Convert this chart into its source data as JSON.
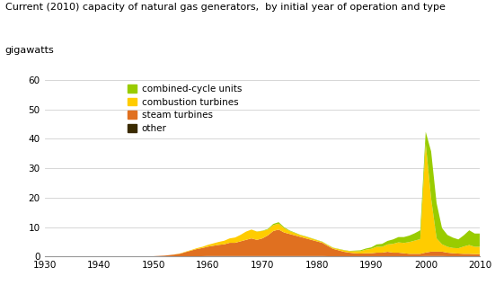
{
  "title": "Current (2010) capacity of natural gas generators,  by initial year of operation and type",
  "ylabel": "gigawatts",
  "xlim": [
    1930,
    2010
  ],
  "ylim": [
    0,
    60
  ],
  "yticks": [
    0,
    10,
    20,
    30,
    40,
    50,
    60
  ],
  "xticks": [
    1930,
    1940,
    1950,
    1960,
    1970,
    1980,
    1990,
    2000,
    2010
  ],
  "colors": {
    "combined_cycle": "#99cc00",
    "combustion": "#ffcc00",
    "steam": "#e07020",
    "other": "#3a2a00"
  },
  "legend_labels": [
    "combined-cycle units",
    "combustion turbines",
    "steam turbines",
    "other"
  ],
  "background_color": "#ffffff",
  "years": [
    1930,
    1931,
    1932,
    1933,
    1934,
    1935,
    1936,
    1937,
    1938,
    1939,
    1940,
    1941,
    1942,
    1943,
    1944,
    1945,
    1946,
    1947,
    1948,
    1949,
    1950,
    1951,
    1952,
    1953,
    1954,
    1955,
    1956,
    1957,
    1958,
    1959,
    1960,
    1961,
    1962,
    1963,
    1964,
    1965,
    1966,
    1967,
    1968,
    1969,
    1970,
    1971,
    1972,
    1973,
    1974,
    1975,
    1976,
    1977,
    1978,
    1979,
    1980,
    1981,
    1982,
    1983,
    1984,
    1985,
    1986,
    1987,
    1988,
    1989,
    1990,
    1991,
    1992,
    1993,
    1994,
    1995,
    1996,
    1997,
    1998,
    1999,
    2000,
    2001,
    2002,
    2003,
    2004,
    2005,
    2006,
    2007,
    2008,
    2009,
    2010
  ],
  "combined_cycle": [
    0,
    0,
    0,
    0,
    0,
    0,
    0,
    0,
    0,
    0,
    0,
    0,
    0,
    0,
    0,
    0,
    0,
    0,
    0,
    0,
    0,
    0,
    0,
    0,
    0,
    0,
    0,
    0,
    0,
    0,
    0,
    0,
    0,
    0,
    0,
    0,
    0,
    0,
    0,
    0.05,
    0.1,
    0.2,
    0.4,
    0.5,
    0.3,
    0.2,
    0.15,
    0.1,
    0.1,
    0.1,
    0.1,
    0.1,
    0.1,
    0.1,
    0.1,
    0.1,
    0.1,
    0.2,
    0.3,
    0.4,
    0.5,
    0.8,
    1.0,
    1.2,
    1.5,
    1.8,
    2.0,
    2.2,
    2.5,
    3.0,
    4.0,
    16.0,
    12.0,
    5.5,
    4.0,
    3.5,
    3.0,
    3.8,
    5.0,
    4.5,
    4.5
  ],
  "combustion": [
    0,
    0,
    0,
    0,
    0,
    0,
    0,
    0,
    0,
    0,
    0,
    0,
    0,
    0,
    0,
    0,
    0,
    0,
    0,
    0,
    0,
    0,
    0,
    0,
    0.05,
    0.1,
    0.15,
    0.2,
    0.3,
    0.4,
    0.6,
    0.8,
    1.0,
    1.2,
    1.5,
    1.8,
    2.2,
    2.8,
    3.0,
    2.8,
    2.5,
    2.0,
    2.0,
    2.0,
    1.5,
    1.0,
    0.8,
    0.6,
    0.6,
    0.5,
    0.4,
    0.3,
    0.3,
    0.3,
    0.4,
    0.5,
    0.5,
    0.7,
    0.8,
    1.2,
    1.5,
    2.0,
    2.0,
    2.5,
    3.0,
    3.5,
    3.5,
    4.0,
    4.5,
    5.0,
    37.0,
    18.0,
    4.5,
    2.5,
    2.0,
    1.8,
    1.8,
    2.5,
    3.0,
    2.5,
    2.5
  ],
  "steam": [
    0,
    0,
    0,
    0,
    0,
    0,
    0,
    0,
    0,
    0,
    0,
    0,
    0,
    0,
    0,
    0,
    0,
    0,
    0,
    0,
    0.1,
    0.2,
    0.3,
    0.5,
    0.7,
    1.0,
    1.5,
    2.0,
    2.5,
    2.8,
    3.2,
    3.5,
    3.8,
    4.0,
    4.5,
    4.5,
    5.0,
    5.5,
    6.0,
    5.5,
    6.0,
    7.0,
    8.5,
    9.0,
    8.0,
    7.5,
    7.0,
    6.5,
    6.0,
    5.5,
    5.0,
    4.5,
    3.5,
    2.5,
    2.0,
    1.5,
    1.2,
    1.0,
    0.9,
    1.0,
    1.0,
    1.2,
    1.2,
    1.5,
    1.2,
    1.2,
    1.0,
    0.8,
    0.8,
    0.8,
    1.2,
    1.5,
    1.5,
    1.5,
    1.2,
    1.0,
    0.9,
    0.8,
    0.8,
    0.7,
    0.7
  ],
  "other": [
    0,
    0,
    0,
    0,
    0,
    0,
    0,
    0,
    0,
    0,
    0,
    0,
    0,
    0,
    0,
    0,
    0,
    0,
    0,
    0,
    0,
    0,
    0,
    0,
    0,
    0,
    0.05,
    0.05,
    0.05,
    0.1,
    0.15,
    0.15,
    0.15,
    0.15,
    0.15,
    0.15,
    0.15,
    0.15,
    0.15,
    0.15,
    0.15,
    0.15,
    0.15,
    0.15,
    0.15,
    0.15,
    0.15,
    0.15,
    0.15,
    0.15,
    0.15,
    0.15,
    0.1,
    0.1,
    0.1,
    0.1,
    0.1,
    0.1,
    0.1,
    0.1,
    0.1,
    0.1,
    0.1,
    0.1,
    0.1,
    0.1,
    0.1,
    0.1,
    0.1,
    0.1,
    0.15,
    0.15,
    0.15,
    0.15,
    0.1,
    0.1,
    0.1,
    0.1,
    0.1,
    0.1,
    0.1
  ]
}
